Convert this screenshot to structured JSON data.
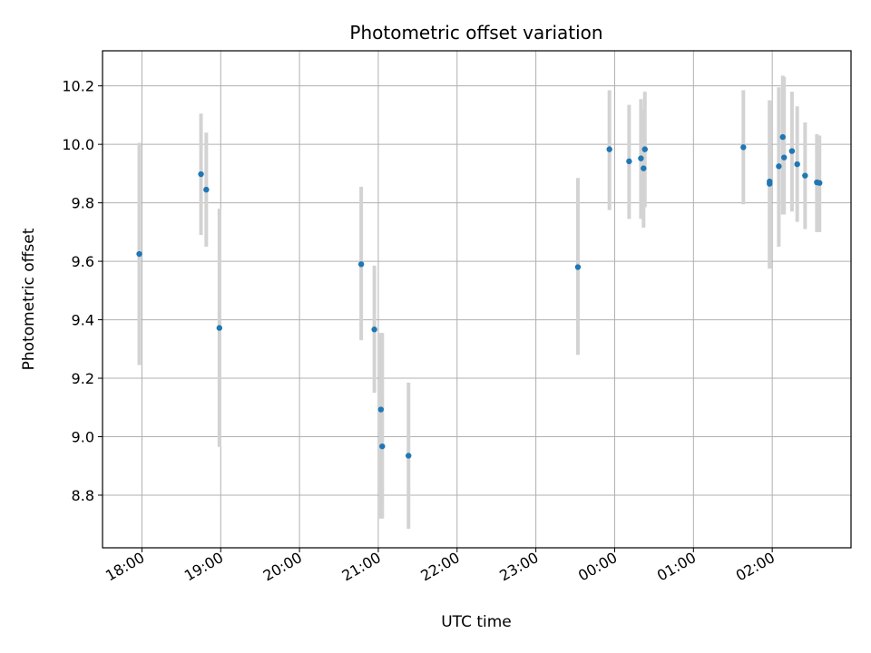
{
  "chart_data": {
    "type": "scatter",
    "title": "Photometric offset variation",
    "xlabel": "UTC time",
    "ylabel": "Photometric offset",
    "x_axis": "time",
    "x_start_date": "",
    "xlim": [
      "17:30",
      "03:00"
    ],
    "ylim": [
      8.62,
      10.32
    ],
    "x_ticks": [
      "18:00",
      "19:00",
      "20:00",
      "21:00",
      "22:00",
      "23:00",
      "00:00",
      "01:00",
      "02:00"
    ],
    "y_ticks": [
      8.8,
      9.0,
      9.2,
      9.4,
      9.6,
      9.8,
      10.0,
      10.2
    ],
    "grid": true,
    "legend": "none",
    "colors": {
      "marker": "#1f77b4",
      "errorbar": "#d3d3d3",
      "grid": "#b0b0b0"
    },
    "points": [
      {
        "x": "17:58",
        "y": 9.625,
        "ylo": 9.245,
        "yhi": 10.005
      },
      {
        "x": "18:45",
        "y": 9.898,
        "ylo": 9.69,
        "yhi": 10.105
      },
      {
        "x": "18:49",
        "y": 9.845,
        "ylo": 9.65,
        "yhi": 10.04
      },
      {
        "x": "18:59",
        "y": 9.372,
        "ylo": 8.965,
        "yhi": 9.78
      },
      {
        "x": "20:47",
        "y": 9.59,
        "ylo": 9.33,
        "yhi": 9.855
      },
      {
        "x": "20:57",
        "y": 9.367,
        "ylo": 9.15,
        "yhi": 9.585
      },
      {
        "x": "21:02",
        "y": 9.093,
        "ylo": 8.72,
        "yhi": 9.355
      },
      {
        "x": "21:03",
        "y": 8.967,
        "ylo": 8.72,
        "yhi": 9.355
      },
      {
        "x": "21:23",
        "y": 8.935,
        "ylo": 8.685,
        "yhi": 9.185
      },
      {
        "x": "23:32",
        "y": 9.58,
        "ylo": 9.28,
        "yhi": 9.885
      },
      {
        "x": "23:56",
        "y": 9.983,
        "ylo": 9.775,
        "yhi": 10.185
      },
      {
        "x": "00:11",
        "y": 9.942,
        "ylo": 9.745,
        "yhi": 10.135
      },
      {
        "x": "00:20",
        "y": 9.952,
        "ylo": 9.745,
        "yhi": 10.155
      },
      {
        "x": "00:22",
        "y": 9.918,
        "ylo": 9.715,
        "yhi": 10.12
      },
      {
        "x": "00:23",
        "y": 9.983,
        "ylo": 9.785,
        "yhi": 10.18
      },
      {
        "x": "01:38",
        "y": 9.99,
        "ylo": 9.795,
        "yhi": 10.185
      },
      {
        "x": "01:58",
        "y": 9.865,
        "ylo": 9.575,
        "yhi": 10.15
      },
      {
        "x": "01:58",
        "y": 9.873,
        "ylo": 9.575,
        "yhi": 10.15
      },
      {
        "x": "02:05",
        "y": 9.925,
        "ylo": 9.65,
        "yhi": 10.195
      },
      {
        "x": "02:08",
        "y": 10.025,
        "ylo": 9.76,
        "yhi": 10.235
      },
      {
        "x": "02:09",
        "y": 9.955,
        "ylo": 9.76,
        "yhi": 10.23
      },
      {
        "x": "02:15",
        "y": 9.977,
        "ylo": 9.77,
        "yhi": 10.18
      },
      {
        "x": "02:19",
        "y": 9.932,
        "ylo": 9.735,
        "yhi": 10.13
      },
      {
        "x": "02:25",
        "y": 9.893,
        "ylo": 9.71,
        "yhi": 10.075
      },
      {
        "x": "02:34",
        "y": 9.87,
        "ylo": 9.7,
        "yhi": 10.035
      },
      {
        "x": "02:36",
        "y": 9.868,
        "ylo": 9.7,
        "yhi": 10.03
      }
    ]
  }
}
